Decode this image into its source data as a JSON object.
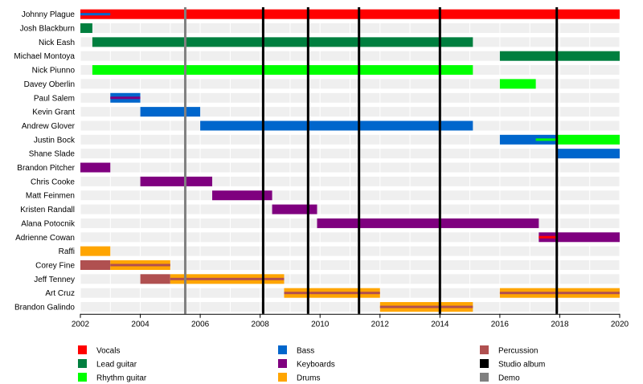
{
  "chart_data": {
    "type": "timeline",
    "title": "",
    "xlabel": "",
    "ylabel": "",
    "xlim": [
      2002,
      2020
    ],
    "x_ticks": [
      "2002",
      "2004",
      "2006",
      "2008",
      "2010",
      "2012",
      "2014",
      "2016",
      "2018",
      "2020"
    ],
    "grid": true,
    "legend_position": "bottom",
    "colors": {
      "Vocals": "#ff0000",
      "Lead guitar": "#007f3f",
      "Rhythm guitar": "#00ff00",
      "Bass": "#0066cc",
      "Keyboards": "#7f007f",
      "Drums": "#ffa500",
      "Percussion": "#b05050",
      "Studio album": "#000000",
      "Demo": "#808080"
    },
    "legend": [
      {
        "label": "Vocals",
        "role": "Vocals"
      },
      {
        "label": "Lead guitar",
        "role": "Lead guitar"
      },
      {
        "label": "Rhythm guitar",
        "role": "Rhythm guitar"
      },
      {
        "label": "Bass",
        "role": "Bass"
      },
      {
        "label": "Keyboards",
        "role": "Keyboards"
      },
      {
        "label": "Drums",
        "role": "Drums"
      },
      {
        "label": "Percussion",
        "role": "Percussion"
      },
      {
        "label": "Studio album",
        "role": "Studio album"
      },
      {
        "label": "Demo",
        "role": "Demo"
      }
    ],
    "members": [
      {
        "name": "Johnny Plague",
        "bars": [
          {
            "role": "Vocals",
            "start": 2002.0,
            "end": 2020.0
          },
          {
            "role": "Bass",
            "start": 2002.0,
            "end": 2003.0,
            "thin": true
          }
        ]
      },
      {
        "name": "Josh Blackburn",
        "bars": [
          {
            "role": "Lead guitar",
            "start": 2002.0,
            "end": 2002.4
          }
        ]
      },
      {
        "name": "Nick Eash",
        "bars": [
          {
            "role": "Lead guitar",
            "start": 2002.4,
            "end": 2015.1
          }
        ]
      },
      {
        "name": "Michael Montoya",
        "bars": [
          {
            "role": "Lead guitar",
            "start": 2016.0,
            "end": 2020.0
          }
        ]
      },
      {
        "name": "Nick Piunno",
        "bars": [
          {
            "role": "Rhythm guitar",
            "start": 2002.4,
            "end": 2015.1
          }
        ]
      },
      {
        "name": "Davey Oberlin",
        "bars": [
          {
            "role": "Rhythm guitar",
            "start": 2016.0,
            "end": 2017.2
          }
        ]
      },
      {
        "name": "Paul Salem",
        "bars": [
          {
            "role": "Bass",
            "start": 2003.0,
            "end": 2004.0
          },
          {
            "role": "Keyboards",
            "start": 2003.0,
            "end": 2004.0,
            "thin": true
          }
        ]
      },
      {
        "name": "Kevin Grant",
        "bars": [
          {
            "role": "Bass",
            "start": 2004.0,
            "end": 2006.0
          }
        ]
      },
      {
        "name": "Andrew Glover",
        "bars": [
          {
            "role": "Bass",
            "start": 2006.0,
            "end": 2015.1
          }
        ]
      },
      {
        "name": "Justin Bock",
        "bars": [
          {
            "role": "Bass",
            "start": 2016.0,
            "end": 2017.9
          },
          {
            "role": "Rhythm guitar",
            "start": 2017.9,
            "end": 2020.0
          },
          {
            "role": "Rhythm guitar",
            "start": 2017.2,
            "end": 2017.9,
            "thin": true
          }
        ]
      },
      {
        "name": "Shane Slade",
        "bars": [
          {
            "role": "Bass",
            "start": 2017.9,
            "end": 2020.0
          }
        ]
      },
      {
        "name": "Brandon Pitcher",
        "bars": [
          {
            "role": "Keyboards",
            "start": 2002.0,
            "end": 2003.0
          }
        ]
      },
      {
        "name": "Chris Cooke",
        "bars": [
          {
            "role": "Keyboards",
            "start": 2004.0,
            "end": 2006.4
          }
        ]
      },
      {
        "name": "Matt Feinmen",
        "bars": [
          {
            "role": "Keyboards",
            "start": 2006.4,
            "end": 2008.4
          }
        ]
      },
      {
        "name": "Kristen Randall",
        "bars": [
          {
            "role": "Keyboards",
            "start": 2008.4,
            "end": 2009.9
          }
        ]
      },
      {
        "name": "Alana Potocnik",
        "bars": [
          {
            "role": "Keyboards",
            "start": 2009.9,
            "end": 2017.3
          }
        ]
      },
      {
        "name": "Adrienne Cowan",
        "bars": [
          {
            "role": "Keyboards",
            "start": 2017.3,
            "end": 2020.0
          },
          {
            "role": "Vocals",
            "start": 2017.3,
            "end": 2017.9,
            "thin": true
          }
        ]
      },
      {
        "name": "Raffi",
        "bars": [
          {
            "role": "Drums",
            "start": 2002.0,
            "end": 2003.0
          }
        ]
      },
      {
        "name": "Corey Fine",
        "bars": [
          {
            "role": "Percussion",
            "start": 2002.0,
            "end": 2003.0
          },
          {
            "role": "Drums",
            "start": 2003.0,
            "end": 2005.0
          },
          {
            "role": "Percussion",
            "start": 2003.0,
            "end": 2005.0,
            "thin": true
          }
        ]
      },
      {
        "name": "Jeff Tenney",
        "bars": [
          {
            "role": "Percussion",
            "start": 2004.0,
            "end": 2005.0
          },
          {
            "role": "Drums",
            "start": 2005.0,
            "end": 2008.8
          },
          {
            "role": "Percussion",
            "start": 2005.0,
            "end": 2008.8,
            "thin": true
          }
        ]
      },
      {
        "name": "Art Cruz",
        "bars": [
          {
            "role": "Drums",
            "start": 2008.8,
            "end": 2012.0
          },
          {
            "role": "Percussion",
            "start": 2008.8,
            "end": 2012.0,
            "thin": true
          },
          {
            "role": "Drums",
            "start": 2016.0,
            "end": 2020.0
          },
          {
            "role": "Percussion",
            "start": 2016.0,
            "end": 2020.0,
            "thin": true
          }
        ]
      },
      {
        "name": "Brandon Galindo",
        "bars": [
          {
            "role": "Drums",
            "start": 2012.0,
            "end": 2015.1
          },
          {
            "role": "Percussion",
            "start": 2012.0,
            "end": 2015.1,
            "thin": true
          }
        ]
      }
    ],
    "events": [
      {
        "type": "Demo",
        "x": 2005.5
      },
      {
        "type": "Studio album",
        "x": 2008.1
      },
      {
        "type": "Studio album",
        "x": 2009.6
      },
      {
        "type": "Studio album",
        "x": 2011.3
      },
      {
        "type": "Studio album",
        "x": 2014.0
      },
      {
        "type": "Studio album",
        "x": 2017.9
      }
    ]
  }
}
